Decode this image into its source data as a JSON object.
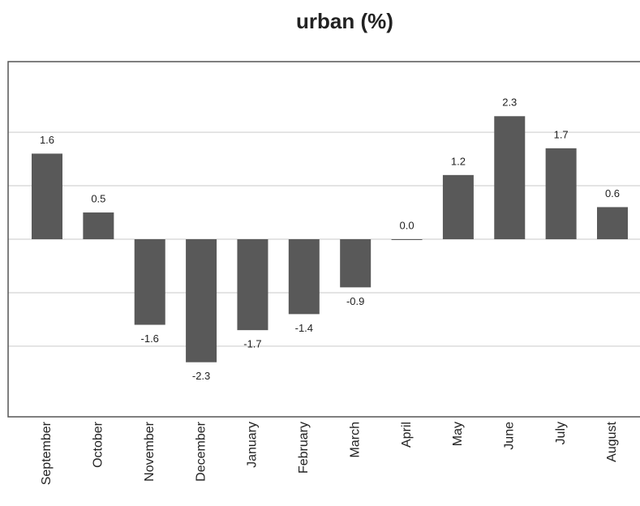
{
  "chart_data": {
    "type": "bar",
    "title": "urban (%)",
    "categories": [
      "September",
      "October",
      "November",
      "December",
      "January",
      "February",
      "March",
      "April",
      "May",
      "June",
      "July",
      "August"
    ],
    "values": [
      1.6,
      0.5,
      -1.6,
      -2.3,
      -1.7,
      -1.4,
      -0.9,
      0.0,
      1.2,
      2.3,
      1.7,
      0.6
    ],
    "value_labels": [
      "1.6",
      "0.5",
      "-1.6",
      "-2.3",
      "-1.7",
      "-1.4",
      "-0.9",
      "0.0",
      "1.2",
      "2.3",
      "1.7",
      "0.6"
    ],
    "color": "#595959",
    "ylim": [
      -3.32,
      3.32
    ],
    "yticks": [
      -2,
      -1,
      0,
      1,
      2
    ],
    "grid": true
  }
}
